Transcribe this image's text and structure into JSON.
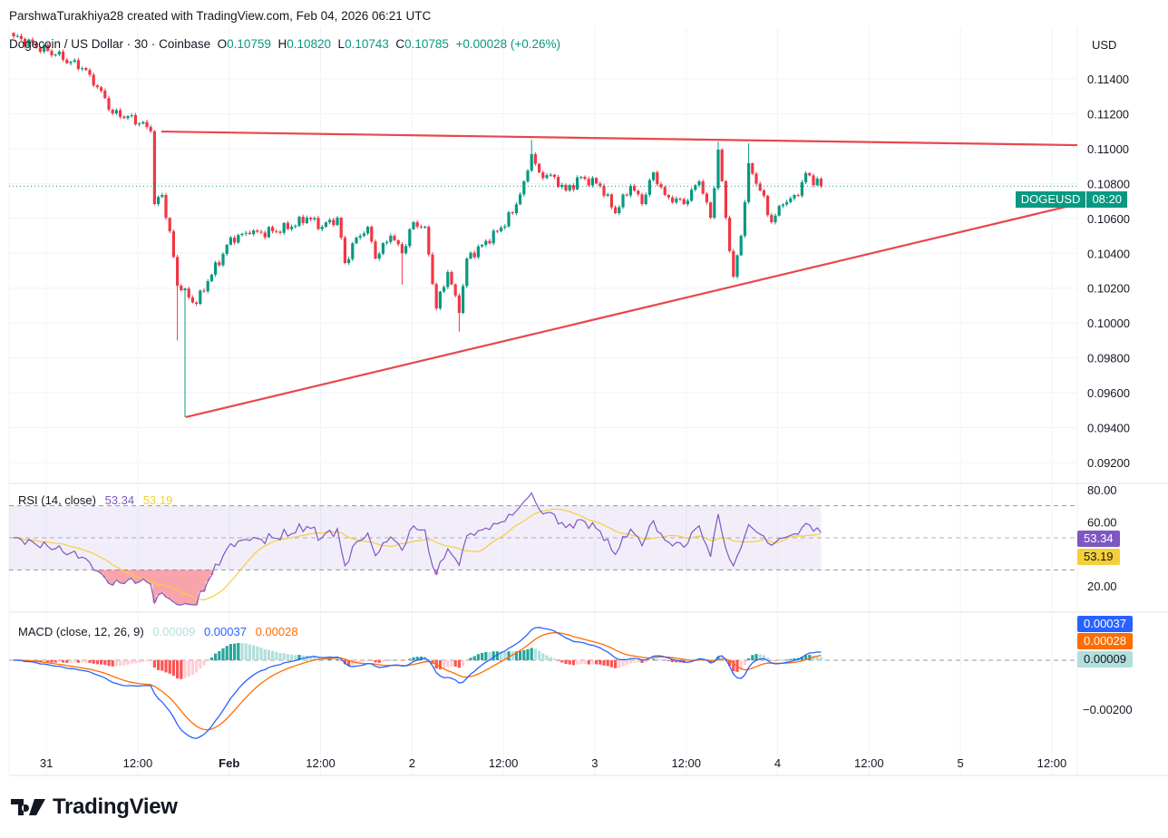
{
  "header": {
    "credit": "ParshwaTurakhiya28 created with TradingView.com, Feb 04, 2026 06:21 UTC",
    "symbol": "Dogecoin / US Dollar · 30 · Coinbase",
    "o_label": "O",
    "o": "0.10759",
    "h_label": "H",
    "h": "0.10820",
    "l_label": "L",
    "l": "0.10743",
    "c_label": "C",
    "c": "0.10785",
    "change": "+0.00028 (+0.26%)"
  },
  "price_axis": {
    "currency": "USD",
    "last_symbol": "DOGEUSD",
    "countdown": "08:20"
  },
  "rsi": {
    "title": "RSI (14, close)",
    "value": "53.34",
    "ma": "53.19"
  },
  "macd": {
    "title": "MACD (close, 12, 26, 9)",
    "hist": "0.00009",
    "macd": "0.00037",
    "signal": "0.00028"
  },
  "branding": {
    "logo_text": "TradingView"
  },
  "colors": {
    "up": "#089981",
    "down": "#f23645",
    "trend": "#e8474e",
    "rsi": "#7e57c2",
    "rsi_ma": "#f5cf3a",
    "macd": "#2962ff",
    "signal": "#ff6d00",
    "hist_up": "#26a69a",
    "hist_up_light": "#b2dfdb",
    "hist_down": "#ff5252",
    "hist_down_light": "#ffcdd2"
  },
  "chart_data": {
    "type": "candlestick",
    "title": "Dogecoin / US Dollar · 30 · Coinbase",
    "interval_minutes": 30,
    "ylabel": "USD",
    "ylim": [
      0.091,
      0.117
    ],
    "price_ticks": [
      "0.11400",
      "0.11200",
      "0.11000",
      "0.10800",
      "0.10600",
      "0.10400",
      "0.10200",
      "0.10000",
      "0.09800",
      "0.09600",
      "0.09400",
      "0.09200"
    ],
    "x_ticks": [
      "31",
      "12:00",
      "Feb",
      "12:00",
      "2",
      "12:00",
      "3",
      "12:00",
      "4",
      "12:00",
      "5",
      "12:00"
    ],
    "first_tick_bar": 8.6,
    "bars_per_tick": 24,
    "bar_count": 213,
    "last_price": 0.10785,
    "close_keypoints": [
      [
        0,
        0.11644
      ],
      [
        11,
        0.1154
      ],
      [
        18,
        0.11462
      ],
      [
        23,
        0.11332
      ],
      [
        26,
        0.11202
      ],
      [
        30,
        0.11187
      ],
      [
        35,
        0.11124
      ],
      [
        36,
        0.111
      ],
      [
        37,
        0.10682
      ],
      [
        39,
        0.10734
      ],
      [
        41,
        0.10526
      ],
      [
        43,
        0.10214
      ],
      [
        44,
        0.10188
      ],
      [
        48,
        0.1011
      ],
      [
        51,
        0.1024
      ],
      [
        55,
        0.10396
      ],
      [
        57,
        0.1049
      ],
      [
        62,
        0.1051
      ],
      [
        68,
        0.10526
      ],
      [
        73,
        0.10552
      ],
      [
        77,
        0.10604
      ],
      [
        81,
        0.10552
      ],
      [
        85,
        0.10604
      ],
      [
        87,
        0.10344
      ],
      [
        90,
        0.1049
      ],
      [
        93,
        0.10552
      ],
      [
        95,
        0.1037
      ],
      [
        99,
        0.105
      ],
      [
        102,
        0.104
      ],
      [
        105,
        0.10578
      ],
      [
        108,
        0.10552
      ],
      [
        111,
        0.10084
      ],
      [
        114,
        0.10292
      ],
      [
        117,
        0.10058
      ],
      [
        119,
        0.1037
      ],
      [
        123,
        0.10448
      ],
      [
        127,
        0.10526
      ],
      [
        131,
        0.1063
      ],
      [
        134,
        0.10812
      ],
      [
        136,
        0.10968
      ],
      [
        138,
        0.10864
      ],
      [
        142,
        0.10838
      ],
      [
        145,
        0.1076
      ],
      [
        149,
        0.10838
      ],
      [
        154,
        0.10786
      ],
      [
        158,
        0.1063
      ],
      [
        162,
        0.10786
      ],
      [
        165,
        0.10682
      ],
      [
        168,
        0.10864
      ],
      [
        171,
        0.10734
      ],
      [
        176,
        0.10682
      ],
      [
        180,
        0.10812
      ],
      [
        183,
        0.10604
      ],
      [
        185,
        0.10994
      ],
      [
        187,
        0.10604
      ],
      [
        189,
        0.10266
      ],
      [
        191,
        0.105
      ],
      [
        193,
        0.10916
      ],
      [
        196,
        0.1076
      ],
      [
        199,
        0.10578
      ],
      [
        202,
        0.1068
      ],
      [
        206,
        0.1073
      ],
      [
        208,
        0.1086
      ],
      [
        212,
        0.10785
      ]
    ],
    "wick_overrides": [
      [
        43,
        "low",
        0.099
      ],
      [
        45,
        "low",
        0.0946
      ],
      [
        102,
        "low",
        0.1022
      ],
      [
        117,
        "low",
        0.0995
      ],
      [
        136,
        "high",
        0.1105
      ],
      [
        185,
        "high",
        0.1104
      ],
      [
        193,
        "high",
        0.1103
      ]
    ],
    "trendlines": [
      {
        "name": "resistance",
        "from": [
          38.8,
          0.11098
        ],
        "to": [
          279.3,
          0.1102
        ]
      },
      {
        "name": "support",
        "from": [
          45.2,
          0.0946
        ],
        "to": [
          279.3,
          0.10682
        ]
      }
    ],
    "rsi": {
      "period": 14,
      "ma_period": 14,
      "levels": [
        70,
        50,
        30
      ],
      "ticks": [
        "80.00",
        "60.00",
        "20.00"
      ],
      "last": 53.34,
      "ma_last": 53.19
    },
    "macd": {
      "fast": 12,
      "slow": 26,
      "signal": 9,
      "ticks": [
        "-0.00200"
      ],
      "last_macd": 0.00037,
      "last_signal": 0.00028,
      "last_hist": 9e-05
    }
  }
}
